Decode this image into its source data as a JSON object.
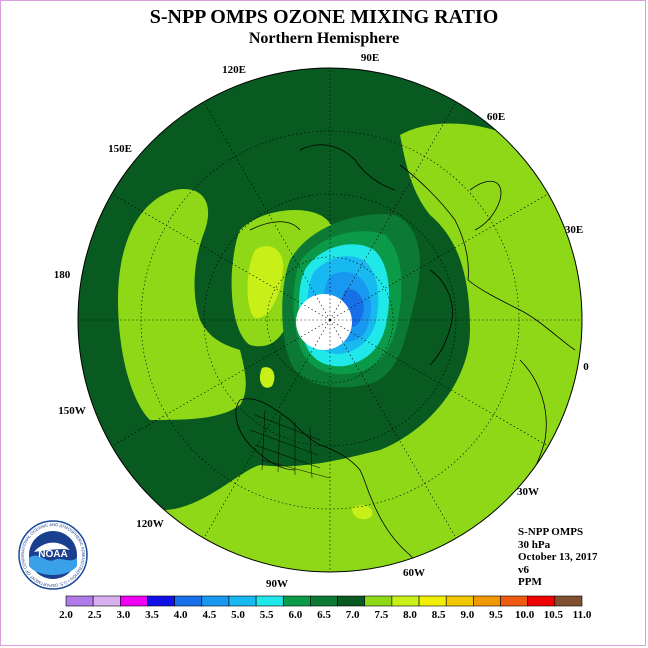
{
  "title": "S-NPP OMPS OZONE MIXING RATIO",
  "subtitle": "Northern Hemisphere",
  "longitude_labels": [
    "90E",
    "60E",
    "30E",
    "0",
    "30W",
    "60W",
    "90W",
    "120W",
    "150W",
    "180",
    "150E",
    "120E"
  ],
  "info": {
    "instrument": "S-NPP OMPS",
    "pressure": "30 hPa",
    "date": "October 13, 2017",
    "version": "v6",
    "units": "PPM"
  },
  "logo": {
    "text": "NOAA",
    "ring_text": "NATIONAL OCEANIC AND ATMOSPHERIC ADMINISTRATION • U.S. DEPARTMENT OF COMMERCE"
  },
  "colorbar": {
    "ticks": [
      "2.0",
      "2.5",
      "3.0",
      "3.5",
      "4.0",
      "4.5",
      "5.0",
      "5.5",
      "6.0",
      "6.5",
      "7.0",
      "7.5",
      "8.0",
      "8.5",
      "9.0",
      "9.5",
      "10.0",
      "10.5",
      "11.0"
    ],
    "colors": [
      "#b07ae8",
      "#d8b0f0",
      "#f000f0",
      "#1010e8",
      "#1870e8",
      "#1898f0",
      "#18b8f0",
      "#20e8e8",
      "#0a9a48",
      "#0c7a34",
      "#085a20",
      "#8ed818",
      "#c8f018",
      "#f0f000",
      "#f0c800",
      "#f09800",
      "#f05a10",
      "#f00000",
      "#805030"
    ]
  }
}
